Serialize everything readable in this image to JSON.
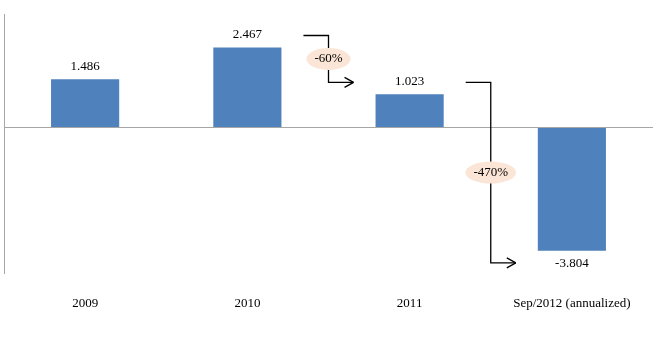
{
  "chart_data": {
    "type": "bar",
    "categories": [
      "2009",
      "2010",
      "2011",
      "Sep/2012 (annualized)"
    ],
    "values": [
      1.486,
      2.467,
      1.023,
      -3.804
    ],
    "color": "#4f81bd",
    "ylim": [
      -4.5,
      3.5
    ],
    "yticks": [
      0
    ],
    "data_labels": true,
    "tick_labels": "x",
    "annotations": [
      {
        "text": "-60%",
        "from": "2010",
        "to": "2011"
      },
      {
        "text": "-470%",
        "from": "2011",
        "to": "Sep/2012 (annualized)"
      }
    ]
  }
}
